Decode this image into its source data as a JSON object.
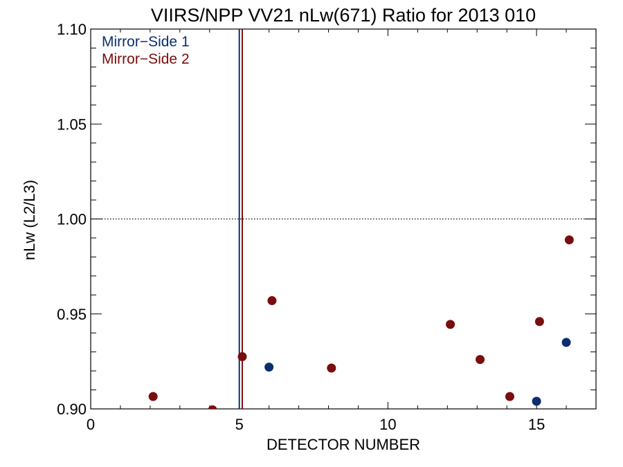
{
  "chart_data": {
    "type": "scatter",
    "title": "VIIRS/NPP VV21 nLw(671) Ratio for 2013 010",
    "xlabel": "DETECTOR NUMBER",
    "ylabel": "nLw (L2/L3)",
    "xlim": [
      0,
      17
    ],
    "ylim": [
      0.9,
      1.1
    ],
    "xticks": [
      0,
      5,
      10,
      15
    ],
    "xtick_labels": [
      "0",
      "5",
      "10",
      "15"
    ],
    "yticks": [
      0.9,
      0.95,
      1.0,
      1.05,
      1.1
    ],
    "ytick_labels": [
      "0.90",
      "0.95",
      "1.00",
      "1.05",
      "1.10"
    ],
    "reference_line_y": 1.0,
    "legend_position": "top-left",
    "series": [
      {
        "name": "Mirror−Side 1",
        "color": "#0b2f6e",
        "vline_x": 5.0,
        "points": [
          {
            "x": 6.0,
            "y": 0.922
          },
          {
            "x": 15.0,
            "y": 0.904
          },
          {
            "x": 16.0,
            "y": 0.935
          }
        ]
      },
      {
        "name": "Mirror−Side 2",
        "color": "#7a0d0d",
        "vline_x": 5.1,
        "points": [
          {
            "x": 2.1,
            "y": 0.9065
          },
          {
            "x": 4.1,
            "y": 0.8995
          },
          {
            "x": 5.1,
            "y": 0.9275
          },
          {
            "x": 6.1,
            "y": 0.957
          },
          {
            "x": 8.1,
            "y": 0.9215
          },
          {
            "x": 12.1,
            "y": 0.9445
          },
          {
            "x": 13.1,
            "y": 0.926
          },
          {
            "x": 14.1,
            "y": 0.9065
          },
          {
            "x": 15.1,
            "y": 0.946
          },
          {
            "x": 16.1,
            "y": 0.989
          }
        ]
      }
    ]
  }
}
